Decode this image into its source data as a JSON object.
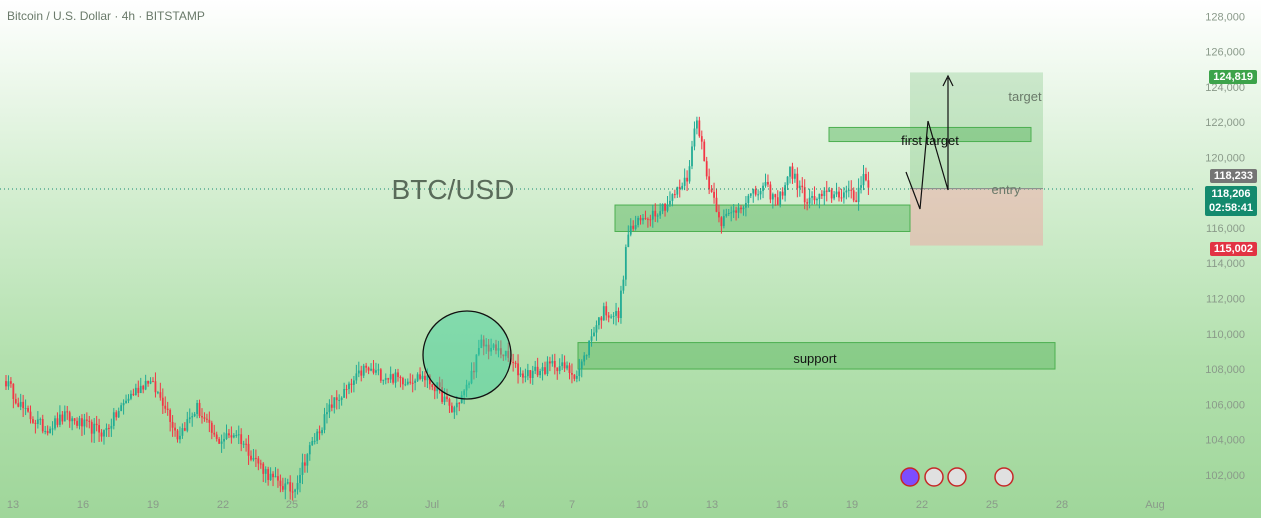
{
  "header": {
    "title": "Bitcoin / U.S. Dollar · 4h · BITSTAMP"
  },
  "chart_data": {
    "type": "candlestick",
    "title": "BTC/USD",
    "ylim": [
      100800,
      128700
    ],
    "y_ticks": [
      {
        "v": 102000,
        "label": "102,000"
      },
      {
        "v": 104000,
        "label": "104,000"
      },
      {
        "v": 106000,
        "label": "106,000"
      },
      {
        "v": 108000,
        "label": "108,000"
      },
      {
        "v": 110000,
        "label": "110,000"
      },
      {
        "v": 112000,
        "label": "112,000"
      },
      {
        "v": 114000,
        "label": "114,000"
      },
      {
        "v": 116000,
        "label": "116,000"
      },
      {
        "v": 118000,
        "label": "118,000"
      },
      {
        "v": 120000,
        "label": "120,000"
      },
      {
        "v": 122000,
        "label": "122,000"
      },
      {
        "v": 124000,
        "label": "124,000"
      },
      {
        "v": 126000,
        "label": "126,000"
      },
      {
        "v": 128000,
        "label": "128,000"
      }
    ],
    "x_ticks": [
      "13",
      "16",
      "19",
      "22",
      "25",
      "28",
      "Jul",
      "4",
      "7",
      "10",
      "13",
      "16",
      "19",
      "22",
      "25",
      "28",
      "Aug"
    ],
    "colors": {
      "up": "#22ab94",
      "down": "#f23645",
      "zone": "#6cc26c"
    },
    "anchors": [
      [
        0,
        107300
      ],
      [
        8,
        105500
      ],
      [
        16,
        104600
      ],
      [
        24,
        105300
      ],
      [
        32,
        104800
      ],
      [
        40,
        104400
      ],
      [
        50,
        106400
      ],
      [
        58,
        107400
      ],
      [
        65,
        106000
      ],
      [
        70,
        104200
      ],
      [
        78,
        105800
      ],
      [
        86,
        103900
      ],
      [
        94,
        104400
      ],
      [
        101,
        103000
      ],
      [
        109,
        101700
      ],
      [
        117,
        101100
      ],
      [
        123,
        103200
      ],
      [
        133,
        106000
      ],
      [
        140,
        106900
      ],
      [
        146,
        108000
      ],
      [
        155,
        107600
      ],
      [
        163,
        107400
      ],
      [
        170,
        107600
      ],
      [
        176,
        106900
      ],
      [
        182,
        105600
      ],
      [
        188,
        106900
      ],
      [
        194,
        109400
      ],
      [
        203,
        108900
      ],
      [
        210,
        107700
      ],
      [
        218,
        107900
      ],
      [
        224,
        108300
      ],
      [
        233,
        107700
      ],
      [
        236,
        108600
      ],
      [
        240,
        110300
      ],
      [
        244,
        111300
      ],
      [
        250,
        111000
      ],
      [
        254,
        115800
      ],
      [
        262,
        116700
      ],
      [
        270,
        117400
      ],
      [
        278,
        118800
      ],
      [
        282,
        122400
      ],
      [
        286,
        118900
      ],
      [
        292,
        116400
      ],
      [
        296,
        116800
      ],
      [
        302,
        117600
      ],
      [
        310,
        118300
      ],
      [
        315,
        117400
      ],
      [
        320,
        119300
      ],
      [
        327,
        117500
      ],
      [
        336,
        117900
      ],
      [
        343,
        118000
      ],
      [
        347,
        117600
      ],
      [
        350,
        119300
      ],
      [
        352,
        118200
      ]
    ],
    "zones": [
      {
        "name": "first-target-zone",
        "y1": 120900,
        "y2": 121700,
        "x1": 829,
        "x2": 1031
      },
      {
        "name": "consolidation-zone",
        "y1": 115800,
        "y2": 117300,
        "x1": 615,
        "x2": 910
      },
      {
        "name": "support-zone",
        "y1": 108000,
        "y2": 109500,
        "x1": 578,
        "x2": 1055
      }
    ],
    "position": {
      "entry": 118233,
      "target": 124819,
      "stop": 115002,
      "x1": 910,
      "x2": 1043
    },
    "annotations": {
      "first_target": "first target",
      "support": "support",
      "target": "target",
      "entry": "entry"
    },
    "price_labels": {
      "target": "124,819",
      "entry": "118,233",
      "current": "118,206",
      "countdown": "02:58:41",
      "stop": "115,002"
    },
    "current_price": 118206
  }
}
